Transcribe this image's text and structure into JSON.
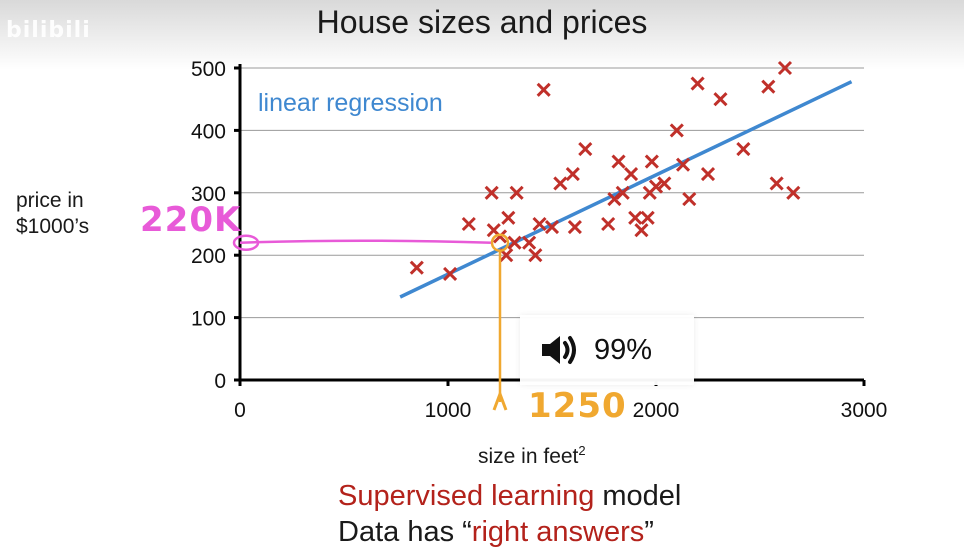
{
  "watermark": "bilibili",
  "overlay": {
    "volume_text": "99%",
    "icon": "speaker-volume-icon"
  },
  "annotations": {
    "price_label": "220K",
    "size_label": "1250",
    "price_color": "#e85ad8",
    "size_color": "#f0a830"
  },
  "caption": {
    "line1_red": "Supervised learning",
    "line1_rest": " model",
    "line2_start": "Data has “",
    "line2_red": "right answers",
    "line2_end": "”"
  },
  "chart_data": {
    "type": "scatter",
    "title": "House sizes and prices",
    "xlabel": "size in feet",
    "xlabel_sup": "2",
    "ylabel": "price in $1000’s",
    "ylabel_line1": "price in",
    "ylabel_line2": "$1000’s",
    "xlim": [
      0,
      3000
    ],
    "ylim": [
      0,
      500
    ],
    "xticks": [
      0,
      1000,
      2000,
      3000
    ],
    "yticks": [
      0,
      100,
      200,
      300,
      400,
      500
    ],
    "grid": true,
    "marker_color": "#c0302a",
    "line_color": "#3f88d0",
    "points": [
      [
        850,
        180
      ],
      [
        1010,
        170
      ],
      [
        1100,
        250
      ],
      [
        1210,
        300
      ],
      [
        1220,
        240
      ],
      [
        1250,
        230
      ],
      [
        1280,
        200
      ],
      [
        1290,
        260
      ],
      [
        1320,
        220
      ],
      [
        1330,
        300
      ],
      [
        1390,
        220
      ],
      [
        1420,
        200
      ],
      [
        1440,
        250
      ],
      [
        1460,
        465
      ],
      [
        1500,
        245
      ],
      [
        1540,
        315
      ],
      [
        1600,
        330
      ],
      [
        1610,
        245
      ],
      [
        1660,
        370
      ],
      [
        1770,
        250
      ],
      [
        1800,
        290
      ],
      [
        1820,
        350
      ],
      [
        1840,
        300
      ],
      [
        1880,
        330
      ],
      [
        1900,
        260
      ],
      [
        1930,
        240
      ],
      [
        1960,
        260
      ],
      [
        1970,
        300
      ],
      [
        1980,
        350
      ],
      [
        2000,
        310
      ],
      [
        2040,
        315
      ],
      [
        2100,
        400
      ],
      [
        2130,
        345
      ],
      [
        2160,
        290
      ],
      [
        2200,
        475
      ],
      [
        2250,
        330
      ],
      [
        2310,
        450
      ],
      [
        2420,
        370
      ],
      [
        2540,
        470
      ],
      [
        2580,
        315
      ],
      [
        2620,
        500
      ],
      [
        2660,
        300
      ]
    ],
    "series": [
      {
        "name": "linear regression",
        "type": "line",
        "x": [
          770,
          2940
        ],
        "y": [
          133,
          478
        ]
      }
    ],
    "highlight": {
      "x": 1250,
      "y": 220
    }
  }
}
